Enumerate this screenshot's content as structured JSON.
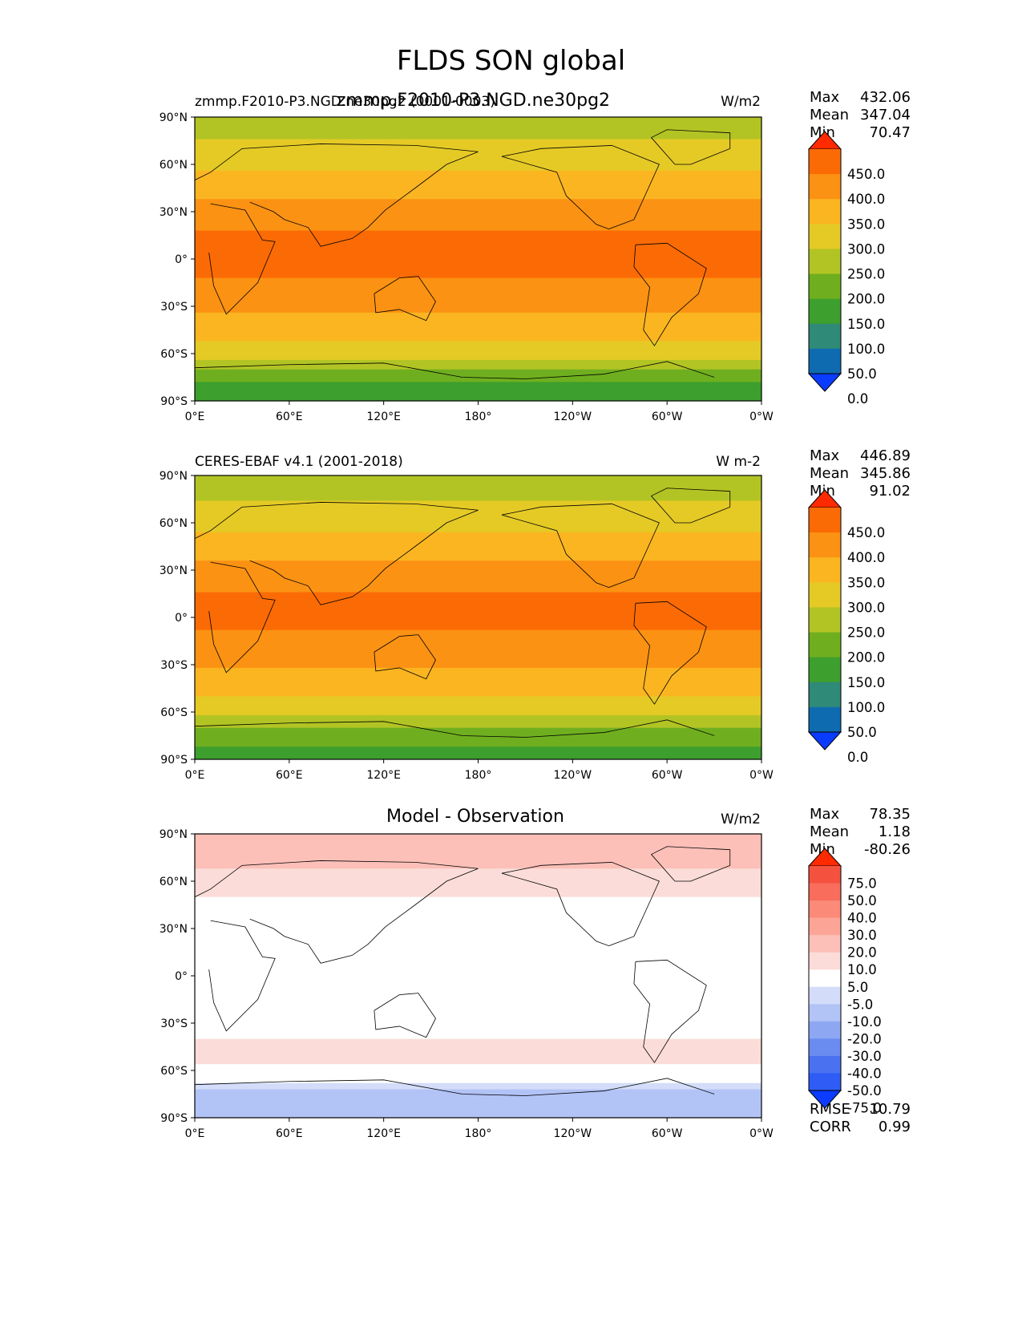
{
  "suptitle": "FLDS SON global",
  "panels": [
    {
      "left_title": "zmmp.F2010-P3.NGD.ne30pg2 (0001-0003)",
      "center_title": "zmmp.F2010-P3.NGD.ne30pg2",
      "units": "W/m2",
      "stats": [
        {
          "label": "Max",
          "value": "432.06"
        },
        {
          "label": "Mean",
          "value": "347.04"
        },
        {
          "label": "Min",
          "value": "70.47"
        }
      ],
      "colorbar_labels": [
        "450.0",
        "400.0",
        "350.0",
        "300.0",
        "250.0",
        "200.0",
        "150.0",
        "100.0",
        "50.0",
        "0.0"
      ],
      "palette": "sequential"
    },
    {
      "left_title": "CERES-EBAF v4.1 (2001-2018)",
      "center_title": "",
      "units": "W m-2",
      "stats": [
        {
          "label": "Max",
          "value": "446.89"
        },
        {
          "label": "Mean",
          "value": "345.86"
        },
        {
          "label": "Min",
          "value": "91.02"
        }
      ],
      "colorbar_labels": [
        "450.0",
        "400.0",
        "350.0",
        "300.0",
        "250.0",
        "200.0",
        "150.0",
        "100.0",
        "50.0",
        "0.0"
      ],
      "palette": "sequential"
    },
    {
      "left_title": "",
      "center_title": "Model - Observation",
      "units": "W/m2",
      "stats": [
        {
          "label": "Max",
          "value": "78.35"
        },
        {
          "label": "Mean",
          "value": "1.18"
        },
        {
          "label": "Min",
          "value": "-80.26"
        }
      ],
      "colorbar_labels": [
        "75.0",
        "50.0",
        "40.0",
        "30.0",
        "20.0",
        "10.0",
        "5.0",
        "-5.0",
        "-10.0",
        "-20.0",
        "-30.0",
        "-40.0",
        "-50.0",
        "-75.0"
      ],
      "palette": "diverging",
      "extra_stats": [
        {
          "label": "RMSE",
          "value": "10.79"
        },
        {
          "label": "CORR",
          "value": "0.99"
        }
      ]
    }
  ],
  "chart_data": [
    {
      "type": "heatmap",
      "title": "zmmp.F2010-P3.NGD.ne30pg2",
      "x_ticks": [
        "0°E",
        "60°E",
        "120°E",
        "180°",
        "120°W",
        "60°W",
        "0°W"
      ],
      "y_ticks": [
        "90°N",
        "60°N",
        "30°N",
        "0°",
        "30°S",
        "60°S",
        "90°S"
      ],
      "xlim": [
        0,
        360
      ],
      "ylim": [
        -90,
        90
      ],
      "levels": [
        0,
        50,
        100,
        150,
        200,
        250,
        300,
        350,
        400,
        450
      ],
      "colors": [
        "#0a3cff",
        "#0f6bb0",
        "#2f8a78",
        "#3d9f2d",
        "#6faf1f",
        "#b2c424",
        "#e5ca26",
        "#fbb521",
        "#fb9213",
        "#fb6b05",
        "#ff2a00"
      ],
      "zonal_profile": {
        "lat": [
          90,
          75,
          60,
          45,
          30,
          15,
          0,
          -15,
          -30,
          -45,
          -60,
          -75,
          -90
        ],
        "value": [
          230,
          250,
          290,
          330,
          370,
          405,
          415,
          395,
          360,
          320,
          275,
          160,
          120
        ]
      }
    },
    {
      "type": "heatmap",
      "title": "CERES-EBAF v4.1 (2001-2018)",
      "x_ticks": [
        "0°E",
        "60°E",
        "120°E",
        "180°",
        "120°W",
        "60°W",
        "0°W"
      ],
      "y_ticks": [
        "90°N",
        "60°N",
        "30°N",
        "0°",
        "30°S",
        "60°S",
        "90°S"
      ],
      "xlim": [
        0,
        360
      ],
      "ylim": [
        -90,
        90
      ],
      "levels": [
        0,
        50,
        100,
        150,
        200,
        250,
        300,
        350,
        400,
        450
      ],
      "colors": [
        "#0a3cff",
        "#0f6bb0",
        "#2f8a78",
        "#3d9f2d",
        "#6faf1f",
        "#b2c424",
        "#e5ca26",
        "#fbb521",
        "#fb9213",
        "#fb6b05",
        "#ff2a00"
      ],
      "zonal_profile": {
        "lat": [
          90,
          75,
          60,
          45,
          30,
          15,
          0,
          -15,
          -30,
          -45,
          -60,
          -75,
          -90
        ],
        "value": [
          225,
          245,
          285,
          320,
          365,
          400,
          410,
          390,
          355,
          315,
          270,
          165,
          135
        ]
      }
    },
    {
      "type": "heatmap",
      "title": "Model - Observation",
      "x_ticks": [
        "0°E",
        "60°E",
        "120°E",
        "180°",
        "120°W",
        "60°W",
        "0°W"
      ],
      "y_ticks": [
        "90°N",
        "60°N",
        "30°N",
        "0°",
        "30°S",
        "60°S",
        "90°S"
      ],
      "xlim": [
        0,
        360
      ],
      "ylim": [
        -90,
        90
      ],
      "levels": [
        -75,
        -50,
        -40,
        -30,
        -20,
        -10,
        -5,
        5,
        10,
        20,
        30,
        40,
        50,
        75
      ],
      "colors": [
        "#0b3cff",
        "#2e5cf5",
        "#4a72f0",
        "#6a8cf0",
        "#8ea7f3",
        "#b2c3f6",
        "#d3ddf9",
        "#ffffff",
        "#fbdcd8",
        "#fcc0b8",
        "#fca596",
        "#fb8a78",
        "#f86d5c",
        "#f4513f",
        "#ff2a00"
      ],
      "zonal_profile": {
        "lat": [
          90,
          75,
          60,
          45,
          30,
          15,
          0,
          -15,
          -30,
          -45,
          -60,
          -75,
          -90
        ],
        "value": [
          10,
          12,
          8,
          3,
          0,
          2,
          0,
          -2,
          0,
          8,
          4,
          -15,
          -10
        ]
      }
    }
  ]
}
